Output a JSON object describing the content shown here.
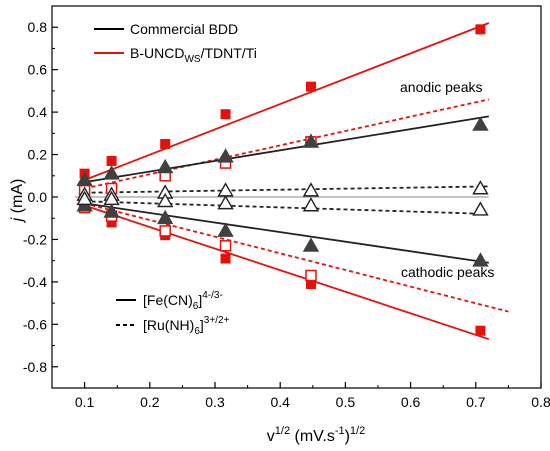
{
  "chart_data": {
    "type": "scatter",
    "xlabel_base": "v",
    "xlabel_sup1": "1/2",
    "xlabel_unit": " (mV.s",
    "xlabel_sup2": "-1",
    "xlabel_close": ")",
    "xlabel_sup3": "1/2",
    "ylabel_italic": "j",
    "ylabel_unit": " (mA)",
    "xlim": [
      0.05,
      0.8
    ],
    "ylim": [
      -0.9,
      0.9
    ],
    "x_ticks": [
      0.1,
      0.2,
      0.3,
      0.4,
      0.5,
      0.6,
      0.7,
      0.8
    ],
    "x_tick_labels": [
      "0.1",
      "0.2",
      "0.3",
      "0.4",
      "0.5",
      "0.6",
      "0.7",
      "0.8"
    ],
    "y_ticks": [
      -0.8,
      -0.6,
      -0.4,
      -0.2,
      0.0,
      0.2,
      0.4,
      0.6,
      0.8
    ],
    "y_tick_labels": [
      "-0.8",
      "-0.6",
      "-0.4",
      "-0.2",
      "0.0",
      "0.2",
      "0.4",
      "0.6",
      "0.8"
    ],
    "zero_line": 0,
    "legend_top": [
      {
        "label": "Commercial BDD",
        "color": "#000000"
      },
      {
        "label_pre": "B-UNCD",
        "label_sub": "WS",
        "label_post": "/TDNT/Ti",
        "color": "#e3120b"
      }
    ],
    "legend_bottom": [
      {
        "label_pre": "[Fe(CN)",
        "label_sub": "6",
        "label_post": "]",
        "label_sup": "4-/3-",
        "style": "solid"
      },
      {
        "label_pre": "[Ru(NH)",
        "label_sub": "6",
        "label_post": "]",
        "label_sup": "3+/2+",
        "style": "dashed"
      }
    ],
    "annotations": {
      "anodic": "anodic peaks",
      "cathodic": "cathodic peaks"
    },
    "colors": {
      "red": "#e3120b",
      "black": "#000000",
      "marker_dark": "#404040",
      "zero_line": "#888888"
    },
    "x": [
      0.1,
      0.1414,
      0.2236,
      0.3162,
      0.4472,
      0.7071
    ],
    "series": [
      {
        "material": "B-UNCD",
        "redox": "Fe",
        "peak": "anodic",
        "marker": "square-filled",
        "color": "#e3120b",
        "line": "solid",
        "values": [
          0.11,
          0.17,
          0.25,
          0.39,
          0.52,
          0.79
        ],
        "fit": {
          "x": [
            0.1,
            0.72
          ],
          "y": [
            0.08,
            0.82
          ]
        }
      },
      {
        "material": "B-UNCD",
        "redox": "Fe",
        "peak": "cathodic",
        "marker": "square-filled",
        "color": "#e3120b",
        "line": "solid",
        "values": [
          -0.04,
          -0.12,
          -0.18,
          -0.29,
          -0.41,
          -0.63
        ],
        "fit": {
          "x": [
            0.1,
            0.72
          ],
          "y": [
            -0.04,
            -0.67
          ]
        }
      },
      {
        "material": "B-UNCD",
        "redox": "Ru",
        "peak": "anodic",
        "marker": "square-open",
        "color": "#e3120b",
        "line": "dashed",
        "values": [
          0.03,
          0.04,
          0.1,
          0.16,
          0.26
        ],
        "xs": [
          0.1,
          0.1414,
          0.2236,
          0.3162,
          0.4472
        ],
        "fit": {
          "x": [
            0.1,
            0.72
          ],
          "y": [
            0.04,
            0.46
          ]
        }
      },
      {
        "material": "B-UNCD",
        "redox": "Ru",
        "peak": "cathodic",
        "marker": "square-open",
        "color": "#e3120b",
        "line": "dashed",
        "values": [
          -0.05,
          -0.09,
          -0.16,
          -0.23,
          -0.37
        ],
        "xs": [
          0.1,
          0.1414,
          0.2236,
          0.3162,
          0.4472
        ],
        "fit": {
          "x": [
            0.1,
            0.75
          ],
          "y": [
            -0.03,
            -0.54
          ]
        }
      },
      {
        "material": "BDD",
        "redox": "Fe",
        "peak": "anodic",
        "marker": "triangle-filled",
        "color": "#404040",
        "line": "solid",
        "values": [
          0.08,
          0.11,
          0.14,
          0.19,
          0.26,
          0.34
        ],
        "fit": {
          "x": [
            0.1,
            0.72
          ],
          "y": [
            0.07,
            0.38
          ]
        }
      },
      {
        "material": "BDD",
        "redox": "Fe",
        "peak": "cathodic",
        "marker": "triangle-filled",
        "color": "#404040",
        "line": "solid",
        "values": [
          -0.04,
          -0.07,
          -0.1,
          -0.16,
          -0.23,
          -0.3
        ],
        "fit": {
          "x": [
            0.1,
            0.72
          ],
          "y": [
            -0.03,
            -0.31
          ]
        }
      },
      {
        "material": "BDD",
        "redox": "Ru",
        "peak": "anodic",
        "marker": "triangle-open",
        "color": "#404040",
        "line": "dashed",
        "values": [
          0.01,
          0.01,
          0.02,
          0.03,
          0.03,
          0.04
        ],
        "fit": {
          "x": [
            0.1,
            0.72
          ],
          "y": [
            0.02,
            0.05
          ]
        }
      },
      {
        "material": "BDD",
        "redox": "Ru",
        "peak": "cathodic",
        "marker": "triangle-open",
        "color": "#404040",
        "line": "dashed",
        "values": [
          -0.01,
          -0.01,
          -0.02,
          -0.03,
          -0.04,
          -0.06
        ],
        "fit": {
          "x": [
            0.1,
            0.72
          ],
          "y": [
            -0.02,
            -0.08
          ]
        }
      }
    ]
  }
}
